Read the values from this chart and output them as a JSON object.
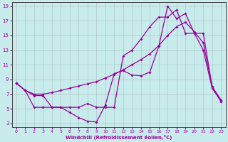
{
  "xlabel": "Windchill (Refroidissement éolien,°C)",
  "bg_color": "#c8ecec",
  "grid_color": "#b0c8c8",
  "line_color": "#990099",
  "xlim": [
    -0.5,
    23.5
  ],
  "ylim": [
    2.5,
    19.5
  ],
  "xticks": [
    0,
    1,
    2,
    3,
    4,
    5,
    6,
    7,
    8,
    9,
    10,
    11,
    12,
    13,
    14,
    15,
    16,
    17,
    18,
    19,
    20,
    21,
    22,
    23
  ],
  "yticks": [
    3,
    5,
    7,
    9,
    11,
    13,
    15,
    17,
    19
  ],
  "line1_x": [
    0,
    1,
    2,
    3,
    4,
    5,
    6,
    7,
    8,
    9,
    10,
    11,
    12,
    13,
    14,
    15,
    16,
    17,
    18,
    19,
    20,
    21,
    22,
    23
  ],
  "line1_y": [
    8.5,
    7.5,
    6.8,
    6.8,
    5.2,
    5.2,
    4.5,
    3.8,
    3.3,
    3.2,
    5.5,
    9.8,
    10.2,
    9.6,
    9.5,
    10.0,
    13.5,
    19.0,
    17.3,
    18.0,
    15.3,
    13.0,
    7.8,
    6.0
  ],
  "line2_x": [
    0,
    1,
    2,
    3,
    4,
    5,
    6,
    7,
    8,
    9,
    10,
    11,
    12,
    13,
    14,
    15,
    16,
    17,
    18,
    19,
    20,
    21,
    22,
    23
  ],
  "line2_y": [
    8.5,
    7.5,
    7.0,
    7.0,
    7.2,
    7.5,
    7.8,
    8.1,
    8.4,
    8.7,
    9.2,
    9.7,
    10.3,
    11.0,
    11.7,
    12.5,
    13.6,
    15.0,
    16.2,
    16.8,
    15.5,
    14.0,
    8.0,
    6.2
  ],
  "line3_x": [
    0,
    1,
    2,
    3,
    4,
    5,
    6,
    7,
    8,
    9,
    10,
    11,
    12,
    13,
    14,
    15,
    16,
    17,
    18,
    19,
    20,
    21,
    22,
    23
  ],
  "line3_y": [
    8.5,
    7.5,
    5.2,
    5.2,
    5.2,
    5.2,
    5.2,
    5.2,
    5.7,
    5.2,
    5.2,
    5.2,
    12.2,
    13.0,
    14.5,
    16.2,
    17.5,
    17.5,
    18.5,
    15.3,
    15.3,
    15.3,
    8.0,
    6.0
  ]
}
